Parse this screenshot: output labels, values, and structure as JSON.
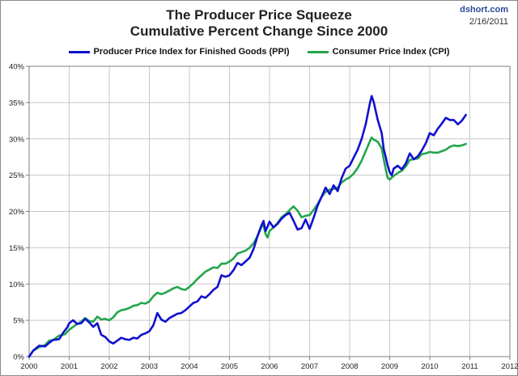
{
  "header": {
    "title": "The Producer Price Squeeze",
    "subtitle": "Cumulative Percent Change Since 2000",
    "watermark_site": "dshort.com",
    "watermark_date": "2/16/2011"
  },
  "colors": {
    "ppi": "#1010d0",
    "cpi": "#22a64a",
    "grid": "#c8c8c8",
    "axis": "#7f7f7f"
  },
  "chart_data": {
    "type": "line",
    "title": "The Producer Price Squeeze",
    "subtitle": "Cumulative Percent Change Since 2000",
    "xlabel": "",
    "ylabel": "",
    "xlim": [
      2000,
      2012
    ],
    "ylim": [
      0,
      40
    ],
    "grid": true,
    "legend_position": "top-center",
    "x_ticks": [
      "2000",
      "2001",
      "2002",
      "2003",
      "2004",
      "2005",
      "2006",
      "2007",
      "2008",
      "2009",
      "2010",
      "2011",
      "2012"
    ],
    "y_ticks": [
      "0%",
      "5%",
      "10%",
      "15%",
      "20%",
      "25%",
      "30%",
      "35%",
      "40%"
    ],
    "series": [
      {
        "name": "Producer Price Index for Finished Goods (PPI)",
        "color": "ppi",
        "points": [
          [
            2000.0,
            0
          ],
          [
            2000.1,
            0.8
          ],
          [
            2000.25,
            1.5
          ],
          [
            2000.4,
            1.4
          ],
          [
            2000.5,
            1.9
          ],
          [
            2000.6,
            2.3
          ],
          [
            2000.75,
            2.4
          ],
          [
            2000.85,
            3.3
          ],
          [
            2000.95,
            4.0
          ],
          [
            2001.0,
            4.6
          ],
          [
            2001.1,
            5.0
          ],
          [
            2001.2,
            4.5
          ],
          [
            2001.3,
            4.6
          ],
          [
            2001.4,
            5.2
          ],
          [
            2001.5,
            4.7
          ],
          [
            2001.6,
            4.1
          ],
          [
            2001.7,
            4.6
          ],
          [
            2001.8,
            3.0
          ],
          [
            2001.9,
            2.7
          ],
          [
            2002.0,
            2.1
          ],
          [
            2002.1,
            1.8
          ],
          [
            2002.2,
            2.2
          ],
          [
            2002.3,
            2.6
          ],
          [
            2002.4,
            2.4
          ],
          [
            2002.5,
            2.3
          ],
          [
            2002.6,
            2.6
          ],
          [
            2002.7,
            2.5
          ],
          [
            2002.8,
            3.0
          ],
          [
            2002.9,
            3.2
          ],
          [
            2003.0,
            3.5
          ],
          [
            2003.1,
            4.3
          ],
          [
            2003.2,
            6.0
          ],
          [
            2003.3,
            5.1
          ],
          [
            2003.4,
            4.8
          ],
          [
            2003.5,
            5.3
          ],
          [
            2003.6,
            5.6
          ],
          [
            2003.7,
            5.9
          ],
          [
            2003.8,
            6.0
          ],
          [
            2003.9,
            6.4
          ],
          [
            2004.0,
            6.9
          ],
          [
            2004.1,
            7.4
          ],
          [
            2004.2,
            7.6
          ],
          [
            2004.3,
            8.3
          ],
          [
            2004.4,
            8.1
          ],
          [
            2004.5,
            8.6
          ],
          [
            2004.6,
            9.2
          ],
          [
            2004.7,
            9.6
          ],
          [
            2004.8,
            11.2
          ],
          [
            2004.9,
            11.0
          ],
          [
            2005.0,
            11.2
          ],
          [
            2005.1,
            11.9
          ],
          [
            2005.2,
            12.9
          ],
          [
            2005.3,
            12.6
          ],
          [
            2005.4,
            13.1
          ],
          [
            2005.5,
            13.6
          ],
          [
            2005.6,
            14.8
          ],
          [
            2005.7,
            16.6
          ],
          [
            2005.8,
            18.1
          ],
          [
            2005.85,
            18.7
          ],
          [
            2005.9,
            17.3
          ],
          [
            2005.95,
            17.9
          ],
          [
            2006.0,
            18.6
          ],
          [
            2006.1,
            17.8
          ],
          [
            2006.2,
            18.3
          ],
          [
            2006.3,
            19.0
          ],
          [
            2006.4,
            19.5
          ],
          [
            2006.5,
            19.8
          ],
          [
            2006.6,
            18.7
          ],
          [
            2006.7,
            17.5
          ],
          [
            2006.8,
            17.7
          ],
          [
            2006.9,
            18.9
          ],
          [
            2007.0,
            17.6
          ],
          [
            2007.1,
            19.1
          ],
          [
            2007.2,
            20.8
          ],
          [
            2007.3,
            22.0
          ],
          [
            2007.4,
            23.3
          ],
          [
            2007.5,
            22.4
          ],
          [
            2007.6,
            23.6
          ],
          [
            2007.7,
            22.8
          ],
          [
            2007.8,
            24.6
          ],
          [
            2007.9,
            25.9
          ],
          [
            2008.0,
            26.3
          ],
          [
            2008.1,
            27.4
          ],
          [
            2008.2,
            28.5
          ],
          [
            2008.3,
            30.0
          ],
          [
            2008.4,
            32.0
          ],
          [
            2008.5,
            34.8
          ],
          [
            2008.55,
            35.9
          ],
          [
            2008.6,
            35.1
          ],
          [
            2008.7,
            32.6
          ],
          [
            2008.8,
            30.8
          ],
          [
            2008.85,
            28.6
          ],
          [
            2008.9,
            27.5
          ],
          [
            2008.95,
            26.3
          ],
          [
            2009.0,
            25.4
          ],
          [
            2009.05,
            25.0
          ],
          [
            2009.1,
            25.9
          ],
          [
            2009.2,
            26.3
          ],
          [
            2009.3,
            25.8
          ],
          [
            2009.4,
            26.6
          ],
          [
            2009.5,
            28.0
          ],
          [
            2009.6,
            27.2
          ],
          [
            2009.7,
            27.6
          ],
          [
            2009.8,
            28.4
          ],
          [
            2009.9,
            29.4
          ],
          [
            2010.0,
            30.8
          ],
          [
            2010.1,
            30.5
          ],
          [
            2010.2,
            31.4
          ],
          [
            2010.3,
            32.1
          ],
          [
            2010.4,
            32.9
          ],
          [
            2010.5,
            32.6
          ],
          [
            2010.6,
            32.6
          ],
          [
            2010.7,
            32.0
          ],
          [
            2010.8,
            32.5
          ],
          [
            2010.9,
            33.3
          ]
        ]
      },
      {
        "name": "Consumer Price Index (CPI)",
        "color": "cpi",
        "points": [
          [
            2000.0,
            0
          ],
          [
            2000.1,
            0.8
          ],
          [
            2000.25,
            1.3
          ],
          [
            2000.4,
            1.6
          ],
          [
            2000.5,
            2.2
          ],
          [
            2000.6,
            2.3
          ],
          [
            2000.75,
            2.9
          ],
          [
            2000.9,
            3.1
          ],
          [
            2001.0,
            3.7
          ],
          [
            2001.1,
            4.1
          ],
          [
            2001.2,
            4.5
          ],
          [
            2001.3,
            4.8
          ],
          [
            2001.4,
            5.3
          ],
          [
            2001.5,
            4.9
          ],
          [
            2001.6,
            4.8
          ],
          [
            2001.7,
            5.5
          ],
          [
            2001.8,
            5.1
          ],
          [
            2001.9,
            5.2
          ],
          [
            2002.0,
            5.0
          ],
          [
            2002.1,
            5.4
          ],
          [
            2002.2,
            6.1
          ],
          [
            2002.3,
            6.4
          ],
          [
            2002.4,
            6.5
          ],
          [
            2002.5,
            6.7
          ],
          [
            2002.6,
            7.0
          ],
          [
            2002.7,
            7.1
          ],
          [
            2002.8,
            7.4
          ],
          [
            2002.9,
            7.3
          ],
          [
            2003.0,
            7.6
          ],
          [
            2003.1,
            8.3
          ],
          [
            2003.2,
            8.8
          ],
          [
            2003.3,
            8.6
          ],
          [
            2003.4,
            8.8
          ],
          [
            2003.5,
            9.1
          ],
          [
            2003.6,
            9.4
          ],
          [
            2003.7,
            9.6
          ],
          [
            2003.8,
            9.3
          ],
          [
            2003.9,
            9.2
          ],
          [
            2004.0,
            9.6
          ],
          [
            2004.1,
            10.1
          ],
          [
            2004.2,
            10.7
          ],
          [
            2004.3,
            11.2
          ],
          [
            2004.4,
            11.7
          ],
          [
            2004.5,
            12.0
          ],
          [
            2004.6,
            12.3
          ],
          [
            2004.7,
            12.2
          ],
          [
            2004.8,
            12.8
          ],
          [
            2004.9,
            12.8
          ],
          [
            2005.0,
            13.1
          ],
          [
            2005.1,
            13.5
          ],
          [
            2005.2,
            14.2
          ],
          [
            2005.3,
            14.4
          ],
          [
            2005.4,
            14.6
          ],
          [
            2005.5,
            15.0
          ],
          [
            2005.6,
            15.6
          ],
          [
            2005.7,
            16.6
          ],
          [
            2005.8,
            17.9
          ],
          [
            2005.85,
            18.1
          ],
          [
            2005.9,
            16.9
          ],
          [
            2005.95,
            16.4
          ],
          [
            2006.0,
            17.3
          ],
          [
            2006.1,
            17.8
          ],
          [
            2006.2,
            18.4
          ],
          [
            2006.3,
            19.2
          ],
          [
            2006.4,
            19.6
          ],
          [
            2006.5,
            20.2
          ],
          [
            2006.6,
            20.7
          ],
          [
            2006.7,
            20.1
          ],
          [
            2006.8,
            19.2
          ],
          [
            2006.9,
            19.4
          ],
          [
            2007.0,
            19.5
          ],
          [
            2007.1,
            20.2
          ],
          [
            2007.2,
            21.0
          ],
          [
            2007.3,
            22.0
          ],
          [
            2007.4,
            22.7
          ],
          [
            2007.5,
            23.0
          ],
          [
            2007.6,
            23.1
          ],
          [
            2007.7,
            23.3
          ],
          [
            2007.8,
            24.0
          ],
          [
            2007.9,
            24.4
          ],
          [
            2008.0,
            24.7
          ],
          [
            2008.1,
            25.2
          ],
          [
            2008.2,
            26.0
          ],
          [
            2008.3,
            27.0
          ],
          [
            2008.4,
            28.3
          ],
          [
            2008.5,
            29.6
          ],
          [
            2008.55,
            30.2
          ],
          [
            2008.6,
            29.9
          ],
          [
            2008.7,
            29.6
          ],
          [
            2008.8,
            28.7
          ],
          [
            2008.85,
            27.2
          ],
          [
            2008.9,
            25.8
          ],
          [
            2008.95,
            24.6
          ],
          [
            2009.0,
            24.4
          ],
          [
            2009.1,
            24.9
          ],
          [
            2009.2,
            25.3
          ],
          [
            2009.3,
            25.6
          ],
          [
            2009.4,
            26.2
          ],
          [
            2009.5,
            27.1
          ],
          [
            2009.6,
            27.2
          ],
          [
            2009.7,
            27.3
          ],
          [
            2009.8,
            27.9
          ],
          [
            2009.9,
            28.0
          ],
          [
            2010.0,
            28.2
          ],
          [
            2010.1,
            28.1
          ],
          [
            2010.2,
            28.1
          ],
          [
            2010.3,
            28.3
          ],
          [
            2010.4,
            28.5
          ],
          [
            2010.5,
            28.9
          ],
          [
            2010.6,
            29.1
          ],
          [
            2010.7,
            29.0
          ],
          [
            2010.8,
            29.1
          ],
          [
            2010.9,
            29.3
          ]
        ]
      }
    ]
  }
}
